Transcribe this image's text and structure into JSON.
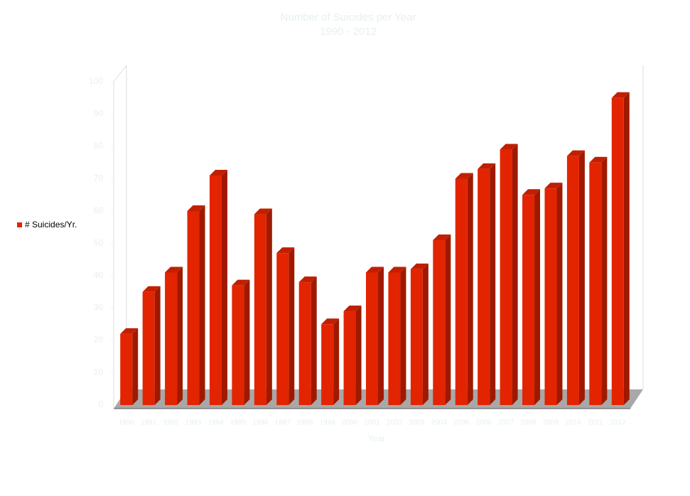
{
  "chart_data": {
    "type": "bar3d",
    "title": "Number of Suicides per Year",
    "subtitle": "1990 - 2012",
    "x_label": "Year",
    "categories": [
      "1990",
      "1991",
      "1992",
      "1993",
      "1994",
      "1995",
      "1996",
      "1997",
      "1998",
      "1999",
      "2000",
      "2001",
      "2002",
      "2003",
      "2004",
      "2005",
      "2006",
      "2007",
      "2008",
      "2009",
      "2010",
      "2011",
      "2012"
    ],
    "series": [
      {
        "name": "# Suicides/Yr.",
        "color": "#e32400",
        "values": [
          22,
          35,
          41,
          60,
          71,
          37,
          59,
          47,
          38,
          25,
          29,
          41,
          41,
          42,
          51,
          70,
          73,
          79,
          65,
          67,
          77,
          75,
          95
        ]
      }
    ],
    "ylim": [
      0,
      100
    ],
    "yticks": [
      0,
      10,
      20,
      30,
      40,
      50,
      60,
      70,
      80,
      90,
      100
    ],
    "legend": "left"
  }
}
